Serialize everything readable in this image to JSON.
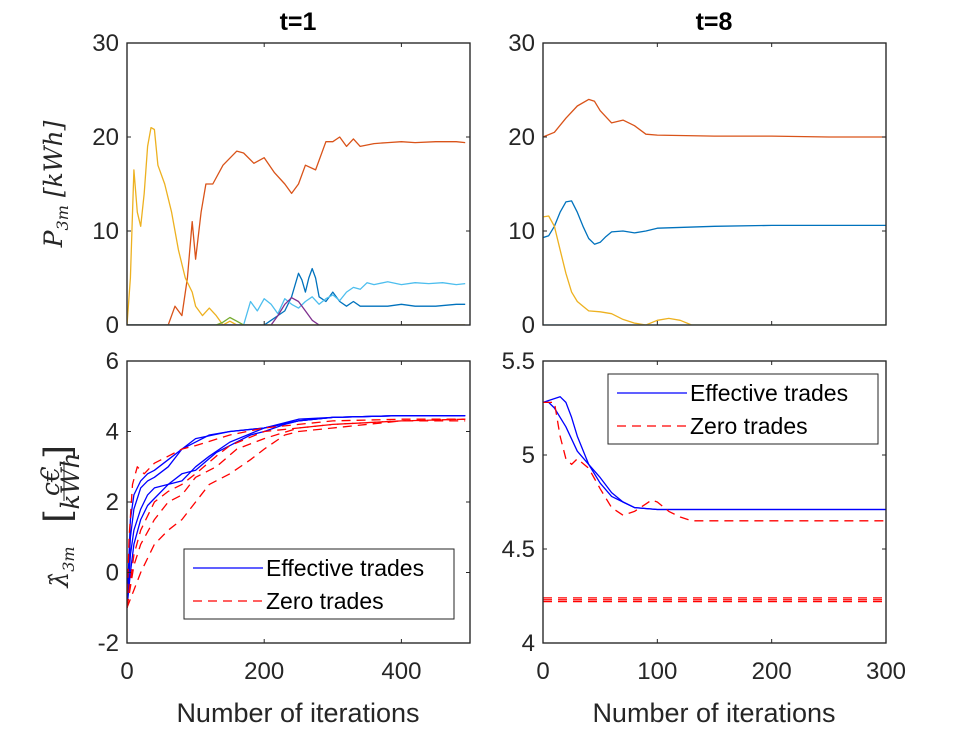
{
  "chart_data": [
    {
      "id": "p-t1",
      "type": "line",
      "title": "t=1",
      "xlabel": "",
      "ylabel": "P_3m [kWh]",
      "ylabel_main": "P",
      "ylabel_sub": "3m",
      "ylabel_unit": "[kWh]",
      "xlim": [
        0,
        500
      ],
      "ylim": [
        0,
        30
      ],
      "yticks": [
        "0",
        "10",
        "20",
        "30"
      ],
      "ytick_values": [
        0,
        10,
        20,
        30
      ],
      "xticks": [],
      "xtick_values": [
        0,
        200,
        400
      ],
      "series": [
        {
          "name": "orange",
          "color": "#D95319",
          "x": [
            0,
            60,
            70,
            80,
            88,
            95,
            100,
            108,
            115,
            125,
            140,
            160,
            170,
            185,
            200,
            215,
            230,
            240,
            250,
            260,
            275,
            290,
            300,
            310,
            320,
            330,
            340,
            360,
            380,
            400,
            420,
            450,
            480,
            493
          ],
          "y": [
            0,
            0,
            2,
            1,
            5,
            11,
            7,
            12,
            15,
            15,
            17,
            18.5,
            18.3,
            17.2,
            17.8,
            16.2,
            15,
            14,
            15,
            17,
            16.5,
            19.5,
            19.5,
            20,
            19,
            19.8,
            19,
            19.3,
            19.4,
            19.5,
            19.4,
            19.5,
            19.5,
            19.4
          ]
        },
        {
          "name": "yellow",
          "color": "#EDB120",
          "x": [
            0,
            5,
            10,
            15,
            20,
            25,
            30,
            35,
            40,
            45,
            55,
            65,
            75,
            85,
            95,
            100,
            110,
            120,
            130,
            140,
            150,
            160,
            493
          ],
          "y": [
            0,
            5,
            16.5,
            12,
            10.5,
            14,
            19,
            21,
            20.8,
            17,
            15,
            12,
            8,
            5,
            3.5,
            2,
            1,
            1.8,
            1,
            0,
            0.4,
            0,
            0
          ]
        },
        {
          "name": "blue",
          "color": "#0072BD",
          "x": [
            0,
            200,
            210,
            220,
            230,
            240,
            250,
            255,
            260,
            265,
            270,
            275,
            280,
            290,
            300,
            310,
            320,
            330,
            340,
            360,
            380,
            400,
            420,
            450,
            480,
            493
          ],
          "y": [
            0,
            0,
            0.5,
            1,
            1.5,
            3,
            5.5,
            4.8,
            3.5,
            5,
            6,
            5,
            3,
            2.5,
            3.5,
            2.5,
            2,
            2.5,
            2,
            2,
            2,
            2.2,
            2,
            2,
            2.2,
            2.2
          ]
        },
        {
          "name": "cyan",
          "color": "#4DBEEE",
          "x": [
            0,
            170,
            180,
            190,
            200,
            210,
            220,
            230,
            240,
            250,
            260,
            270,
            280,
            290,
            300,
            310,
            320,
            330,
            340,
            350,
            360,
            380,
            400,
            420,
            440,
            460,
            480,
            493
          ],
          "y": [
            0,
            0,
            2.5,
            1.5,
            2.8,
            2.2,
            1.2,
            2.8,
            2.2,
            1.8,
            2.5,
            3,
            2.2,
            2.8,
            3.2,
            2.6,
            3.5,
            4,
            3.8,
            4.5,
            4.3,
            4.6,
            4.3,
            4.5,
            4.4,
            4.5,
            4.3,
            4.4
          ]
        },
        {
          "name": "purple",
          "color": "#7E2F8E",
          "x": [
            0,
            210,
            220,
            230,
            240,
            250,
            260,
            270,
            280,
            493
          ],
          "y": [
            0,
            0,
            1,
            2.2,
            2.9,
            2.5,
            1.5,
            0.5,
            0,
            0
          ]
        },
        {
          "name": "green",
          "color": "#77AC30",
          "x": [
            0,
            130,
            140,
            150,
            160,
            170,
            493
          ],
          "y": [
            0,
            0,
            0.3,
            0.8,
            0.4,
            0,
            0
          ]
        }
      ]
    },
    {
      "id": "p-t8",
      "type": "line",
      "title": "t=8",
      "xlabel": "",
      "ylabel": "",
      "xlim": [
        0,
        300
      ],
      "ylim": [
        0,
        30
      ],
      "yticks": [
        "0",
        "10",
        "20",
        "30"
      ],
      "ytick_values": [
        0,
        10,
        20,
        30
      ],
      "xticks": [],
      "xtick_values": [
        0,
        100,
        200,
        300
      ],
      "series": [
        {
          "name": "orange",
          "color": "#D95319",
          "x": [
            0,
            10,
            20,
            30,
            40,
            45,
            50,
            60,
            70,
            80,
            90,
            100,
            150,
            200,
            250,
            300
          ],
          "y": [
            20,
            20.5,
            22,
            23.3,
            24,
            23.8,
            22.8,
            21.5,
            21.8,
            21.2,
            20.3,
            20.2,
            20.1,
            20.1,
            20,
            20
          ]
        },
        {
          "name": "blue",
          "color": "#0072BD",
          "x": [
            0,
            5,
            10,
            15,
            20,
            25,
            30,
            35,
            40,
            45,
            50,
            55,
            60,
            70,
            80,
            90,
            100,
            150,
            200,
            250,
            300
          ],
          "y": [
            9.3,
            9.5,
            10.5,
            12,
            13.1,
            13.2,
            12,
            10.5,
            9.2,
            8.6,
            8.8,
            9.4,
            9.9,
            10,
            9.8,
            10,
            10.3,
            10.5,
            10.6,
            10.6,
            10.6
          ]
        },
        {
          "name": "yellow",
          "color": "#EDB120",
          "x": [
            0,
            5,
            10,
            15,
            20,
            25,
            30,
            35,
            40,
            50,
            60,
            70,
            80,
            90,
            100,
            110,
            120,
            130,
            300
          ],
          "y": [
            11.5,
            11.6,
            10.5,
            8,
            5.5,
            3.5,
            2.5,
            2,
            1.5,
            1.4,
            1.2,
            0.6,
            0.2,
            0,
            0.5,
            0.7,
            0.5,
            0,
            0
          ]
        },
        {
          "name": "light-blue",
          "color": "#4DBEEE",
          "x": [
            0,
            300
          ],
          "y": [
            0,
            0
          ]
        }
      ]
    },
    {
      "id": "lambda-t1",
      "type": "line",
      "title": "",
      "xlabel": "Number of iterations",
      "ylabel": "λ̂_3m [c€/kWh]",
      "ylabel_main": "λ̂",
      "ylabel_sub": "3m",
      "ylabel_frac_top": "c€",
      "ylabel_frac_bottom": "kWh",
      "xlim": [
        0,
        500
      ],
      "ylim": [
        -2,
        6
      ],
      "yticks": [
        "-2",
        "0",
        "2",
        "4",
        "6"
      ],
      "ytick_values": [
        -2,
        0,
        2,
        4,
        6
      ],
      "xticks": [
        "0",
        "200",
        "400"
      ],
      "xtick_values": [
        0,
        200,
        400
      ],
      "legend": {
        "position": "bottom-right",
        "entries": [
          "Effective trades",
          "Zero trades"
        ]
      },
      "series": [
        {
          "name": "Effective trades",
          "style": "solid",
          "color": "#0000FF",
          "x": [
            0,
            5,
            10,
            20,
            30,
            40,
            60,
            80,
            100,
            120,
            150,
            200,
            250,
            300,
            400,
            493
          ],
          "y": [
            -1,
            0.5,
            1.2,
            1.8,
            2.2,
            2.4,
            2.5,
            2.6,
            3,
            3.3,
            3.7,
            4.1,
            4.3,
            4.4,
            4.45,
            4.45
          ]
        },
        {
          "name": "Effective trades",
          "style": "solid",
          "color": "#0000FF",
          "x": [
            0,
            5,
            10,
            20,
            30,
            40,
            60,
            80,
            100,
            130,
            150,
            180,
            200,
            230,
            250,
            300,
            400,
            493
          ],
          "y": [
            -1,
            0,
            0.8,
            1.5,
            1.9,
            2.1,
            2.5,
            2.8,
            2.9,
            3.4,
            3.6,
            3.9,
            4,
            4.2,
            4.3,
            4.4,
            4.45,
            4.45
          ]
        },
        {
          "name": "Effective trades",
          "style": "solid",
          "color": "#0000FF",
          "x": [
            0,
            5,
            10,
            20,
            30,
            40,
            60,
            80,
            100,
            120,
            150,
            200,
            250,
            300,
            400,
            493
          ],
          "y": [
            -1,
            1,
            1.8,
            2.4,
            2.6,
            2.7,
            3,
            3.5,
            3.7,
            3.9,
            4,
            4.1,
            4.35,
            4.4,
            4.45,
            4.45
          ]
        },
        {
          "name": "Effective trades",
          "style": "solid",
          "color": "#0000FF",
          "x": [
            0,
            5,
            10,
            20,
            30,
            40,
            60,
            80,
            100,
            150,
            200,
            250,
            300,
            400,
            493
          ],
          "y": [
            -1,
            1.5,
            2.2,
            2.6,
            2.8,
            2.9,
            3.2,
            3.5,
            3.8,
            4,
            4.1,
            4.3,
            4.4,
            4.45,
            4.45
          ]
        },
        {
          "name": "Zero trades",
          "style": "dashed",
          "color": "#FF0000",
          "x": [
            0,
            3,
            8,
            15,
            25,
            40,
            60,
            80,
            100,
            150,
            200,
            250,
            300,
            400,
            493
          ],
          "y": [
            -1,
            1,
            2.5,
            3,
            2.8,
            3.1,
            3.3,
            3.5,
            3.6,
            3.9,
            4.1,
            4.2,
            4.3,
            4.35,
            4.35
          ]
        },
        {
          "name": "Zero trades",
          "style": "dashed",
          "color": "#FF0000",
          "x": [
            0,
            10,
            20,
            40,
            60,
            80,
            100,
            130,
            150,
            200,
            250,
            300,
            400,
            493
          ],
          "y": [
            -1,
            0.5,
            1.2,
            2,
            2.3,
            2.5,
            2.8,
            3.3,
            3.6,
            4,
            4.1,
            4.2,
            4.3,
            4.35
          ]
        },
        {
          "name": "Zero trades",
          "style": "dashed",
          "color": "#FF0000",
          "x": [
            0,
            10,
            20,
            40,
            60,
            80,
            100,
            120,
            150,
            180,
            200,
            230,
            250,
            300,
            350,
            400,
            493
          ],
          "y": [
            -1,
            -0.5,
            0,
            0.8,
            1.2,
            1.5,
            2,
            2.5,
            2.8,
            3.2,
            3.5,
            3.9,
            4,
            4.1,
            4.2,
            4.3,
            4.35
          ]
        },
        {
          "name": "Zero trades",
          "style": "dashed",
          "color": "#FF0000",
          "x": [
            0,
            10,
            20,
            40,
            60,
            80,
            100,
            130,
            160,
            200,
            250,
            300,
            400,
            493
          ],
          "y": [
            -1,
            0.2,
            0.8,
            1.5,
            2,
            2.2,
            2.7,
            3,
            3.5,
            3.8,
            4.1,
            4.2,
            4.3,
            4.3
          ]
        }
      ]
    },
    {
      "id": "lambda-t8",
      "type": "line",
      "title": "",
      "xlabel": "Number of iterations",
      "ylabel": "",
      "xlim": [
        0,
        300
      ],
      "ylim": [
        4,
        5.5
      ],
      "yticks": [
        "4",
        "4.5",
        "5",
        "5.5"
      ],
      "ytick_values": [
        4,
        4.5,
        5,
        5.5
      ],
      "xticks": [
        "0",
        "100",
        "200",
        "300"
      ],
      "xtick_values": [
        0,
        100,
        200,
        300
      ],
      "legend": {
        "position": "top-right",
        "entries": [
          "Effective trades",
          "Zero trades"
        ]
      },
      "series": [
        {
          "name": "Effective trades",
          "style": "solid",
          "color": "#0000FF",
          "x": [
            0,
            5,
            10,
            15,
            20,
            25,
            30,
            40,
            50,
            60,
            70,
            80,
            100,
            150,
            200,
            250,
            300
          ],
          "y": [
            5.28,
            5.29,
            5.3,
            5.31,
            5.28,
            5.2,
            5.1,
            4.95,
            4.85,
            4.78,
            4.75,
            4.72,
            4.71,
            4.71,
            4.71,
            4.71,
            4.71
          ]
        },
        {
          "name": "Effective trades",
          "style": "solid",
          "color": "#0000FF",
          "x": [
            0,
            5,
            10,
            20,
            30,
            40,
            50,
            60,
            70,
            80,
            100,
            150,
            200,
            250,
            300
          ],
          "y": [
            5.28,
            5.28,
            5.25,
            5.15,
            5.02,
            4.95,
            4.88,
            4.8,
            4.75,
            4.72,
            4.71,
            4.71,
            4.71,
            4.71,
            4.71
          ]
        },
        {
          "name": "Zero trades",
          "style": "dashed",
          "color": "#FF0000",
          "x": [
            0,
            10,
            15,
            20,
            25,
            30,
            40,
            50,
            60,
            70,
            80,
            90,
            95,
            100,
            110,
            120,
            130,
            150,
            200,
            250,
            300
          ],
          "y": [
            5.28,
            5.28,
            5.1,
            4.98,
            4.95,
            4.98,
            4.93,
            4.82,
            4.72,
            4.68,
            4.7,
            4.74,
            4.76,
            4.75,
            4.7,
            4.67,
            4.65,
            4.65,
            4.65,
            4.65,
            4.65
          ]
        },
        {
          "name": "Zero trades",
          "style": "dashed",
          "color": "#FF0000",
          "x": [
            0,
            300
          ],
          "y": [
            4.22,
            4.22
          ]
        },
        {
          "name": "Zero trades",
          "style": "dashed",
          "color": "#FF0000",
          "x": [
            0,
            300
          ],
          "y": [
            4.23,
            4.23
          ]
        },
        {
          "name": "Zero trades",
          "style": "dashed",
          "color": "#FF0000",
          "x": [
            0,
            300
          ],
          "y": [
            4.24,
            4.24
          ]
        }
      ]
    }
  ]
}
